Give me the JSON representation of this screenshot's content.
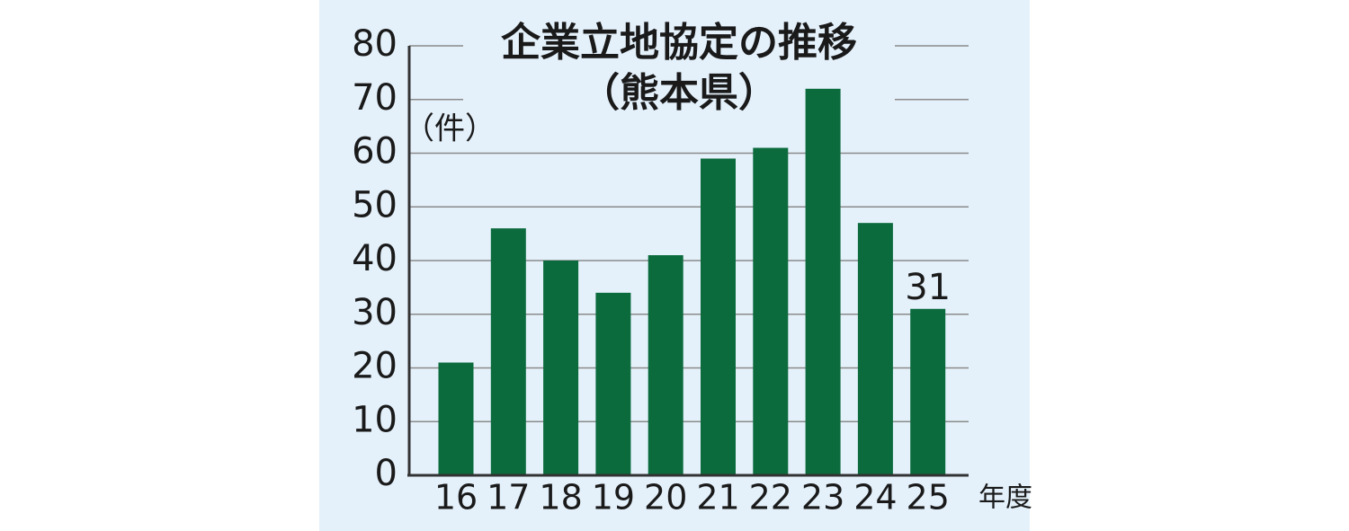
{
  "chart_data": {
    "type": "bar",
    "title": "企業立地協定の推移",
    "subtitle": "（熊本県）",
    "y_label": "（件）",
    "x_label": "年度",
    "categories": [
      "16",
      "17",
      "18",
      "19",
      "20",
      "21",
      "22",
      "23",
      "24",
      "25"
    ],
    "values": [
      21,
      46,
      40,
      34,
      41,
      59,
      61,
      72,
      47,
      31
    ],
    "value_labels": [
      null,
      null,
      null,
      null,
      null,
      null,
      null,
      null,
      null,
      "31"
    ],
    "color": "#0b6b3d",
    "ylim": [
      0,
      80
    ],
    "yticks": [
      0,
      10,
      20,
      30,
      40,
      50,
      60,
      70,
      80
    ],
    "grid": true
  }
}
